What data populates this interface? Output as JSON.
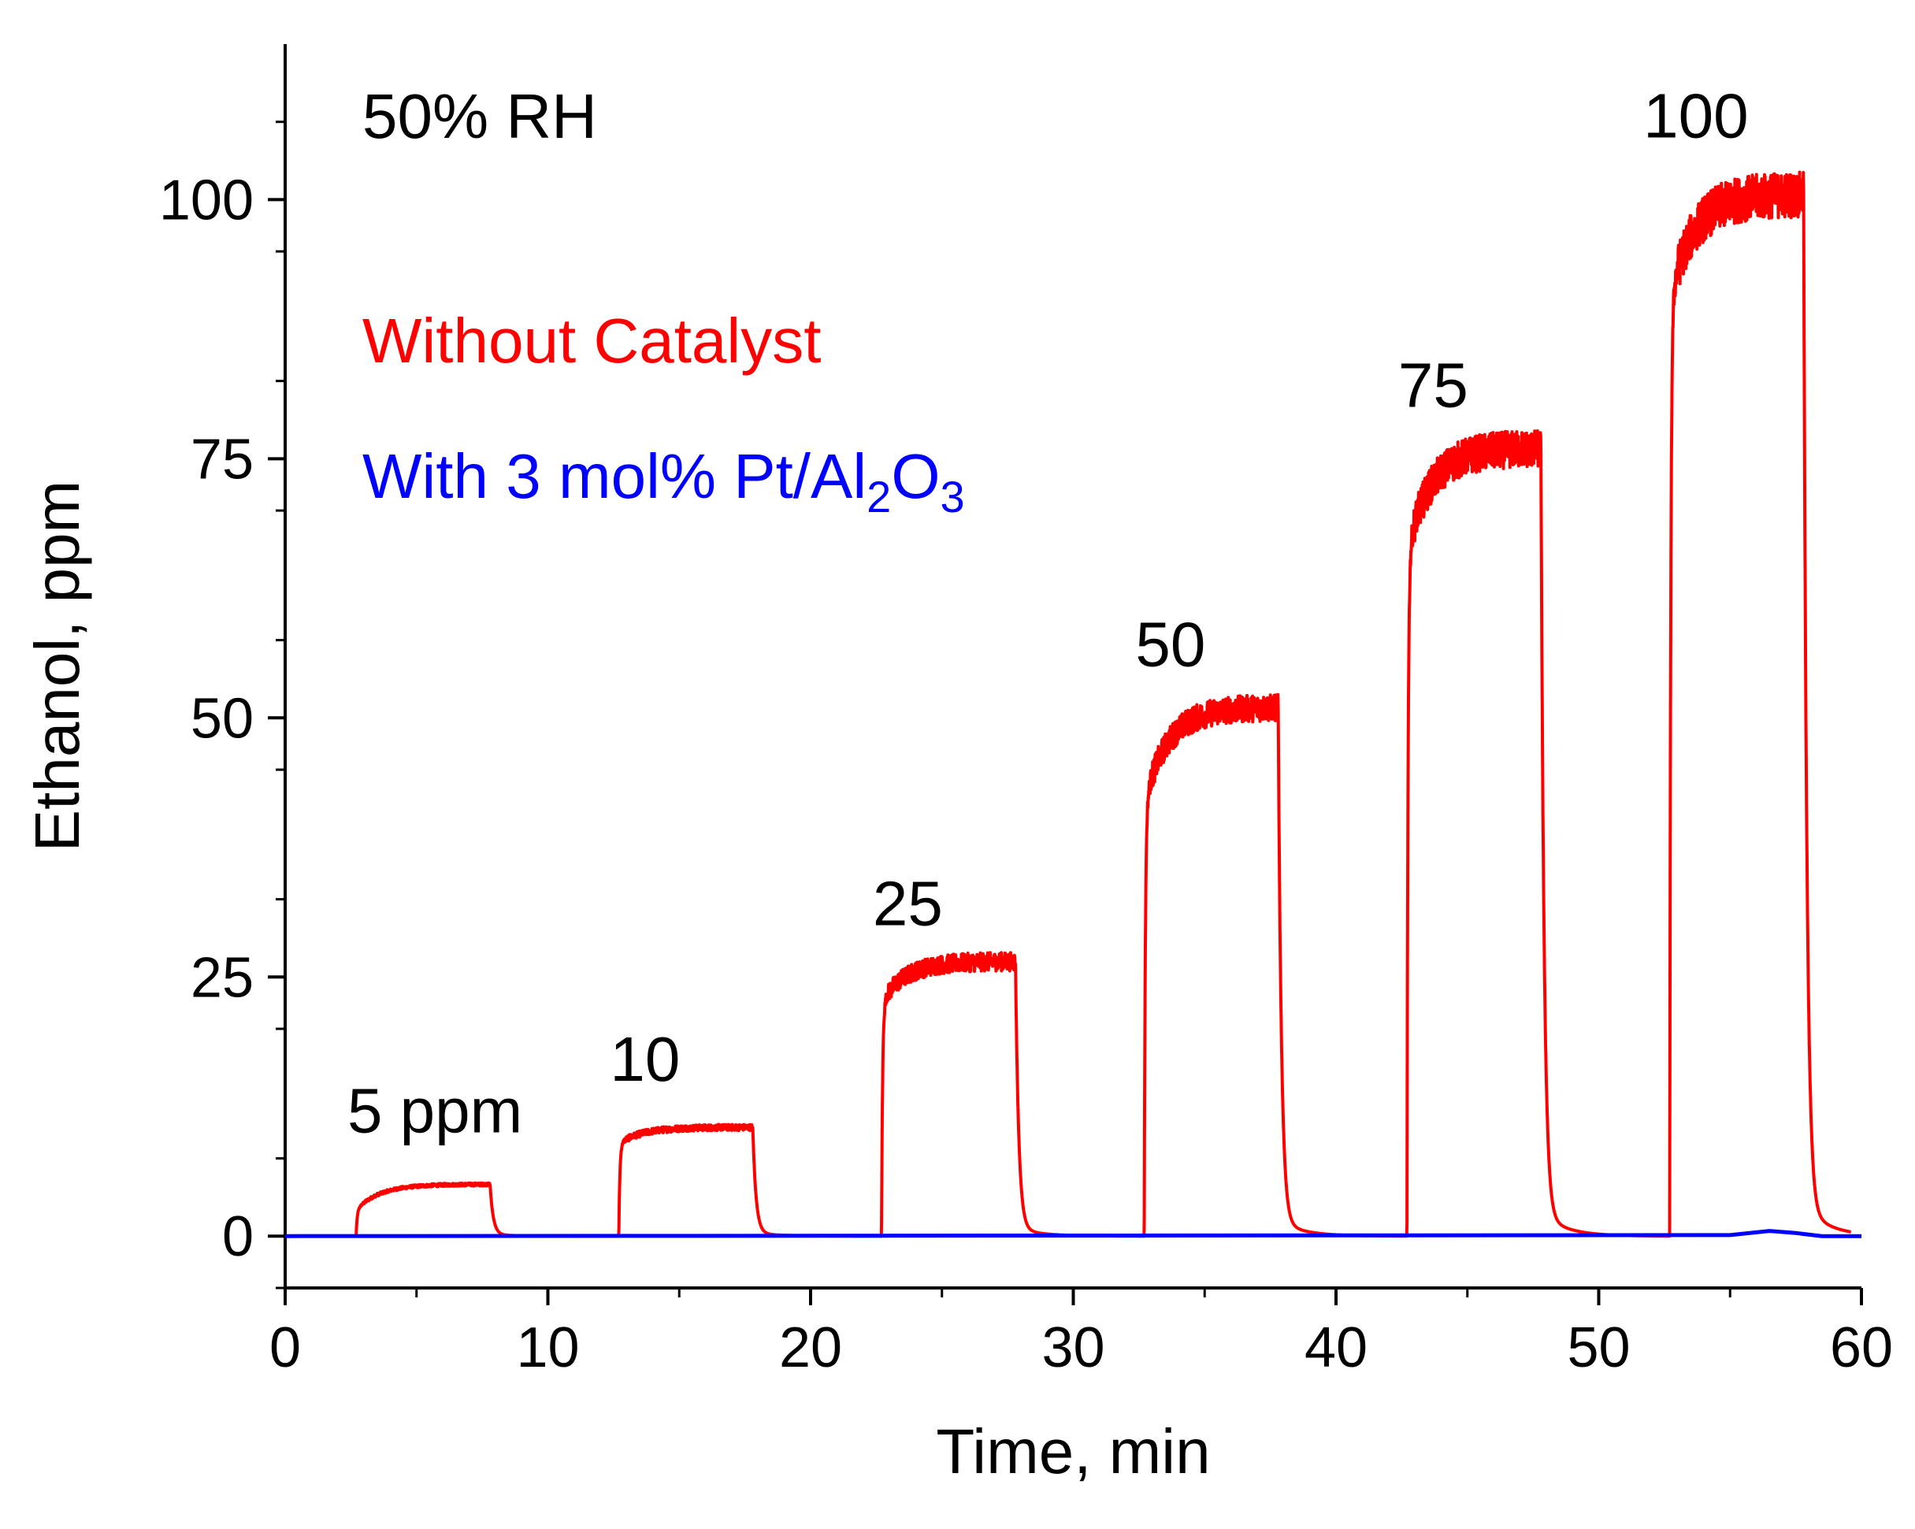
{
  "chart_data": {
    "type": "line",
    "title": "",
    "xlabel": "Time, min",
    "ylabel": "Ethanol, ppm",
    "xlim": [
      0,
      60
    ],
    "ylim": [
      -5,
      115
    ],
    "x_ticks": [
      0,
      10,
      20,
      30,
      40,
      50,
      60
    ],
    "x_tick_labels": [
      "0",
      "10",
      "20",
      "30",
      "40",
      "50",
      "60"
    ],
    "y_ticks": [
      0,
      25,
      50,
      75,
      100
    ],
    "y_tick_labels": [
      "0",
      "25",
      "50",
      "75",
      "100"
    ],
    "grid": false,
    "condition_label": "50% RH",
    "legend": {
      "placement": "top-left",
      "items": [
        {
          "name": "Without Catalyst",
          "color": "#ff0000"
        },
        {
          "name": "With 3 mol% Pt/Al",
          "sub1": "2",
          "mid": "O",
          "sub2": "3",
          "color": "#0000ff"
        }
      ]
    },
    "pulse_labels": [
      {
        "text": "5 ppm",
        "x": 7.5,
        "y": 10
      },
      {
        "text": "10",
        "x": 15.5,
        "y": 15
      },
      {
        "text": "25",
        "x": 25.5,
        "y": 30
      },
      {
        "text": "50",
        "x": 35.5,
        "y": 55
      },
      {
        "text": "75",
        "x": 45.5,
        "y": 80
      },
      {
        "text": "100",
        "x": 55.5,
        "y": 106
      }
    ],
    "series": [
      {
        "name": "Without Catalyst",
        "color": "#ff0000",
        "pulses": [
          {
            "on": 2.7,
            "off": 7.8,
            "level": 5.0,
            "jump": 0.5,
            "noise": 0.15
          },
          {
            "on": 12.7,
            "off": 17.8,
            "level": 10.5,
            "jump": 0.85,
            "noise": 0.3
          },
          {
            "on": 22.7,
            "off": 27.8,
            "level": 26.5,
            "jump": 0.85,
            "noise": 0.9
          },
          {
            "on": 32.7,
            "off": 37.8,
            "level": 51.0,
            "jump": 0.82,
            "noise": 1.3
          },
          {
            "on": 42.7,
            "off": 47.8,
            "level": 76.0,
            "jump": 0.87,
            "noise": 1.8
          },
          {
            "on": 52.7,
            "off": 57.8,
            "level": 100.5,
            "jump": 0.9,
            "noise": 2.2
          }
        ]
      },
      {
        "name": "With 3 mol% Pt/Al2O3",
        "color": "#0000ff",
        "values": [
          [
            0,
            0
          ],
          [
            55,
            0.1
          ],
          [
            56.5,
            0.5
          ],
          [
            57.5,
            0.3
          ],
          [
            58.5,
            0
          ],
          [
            60,
            0
          ]
        ]
      }
    ]
  }
}
